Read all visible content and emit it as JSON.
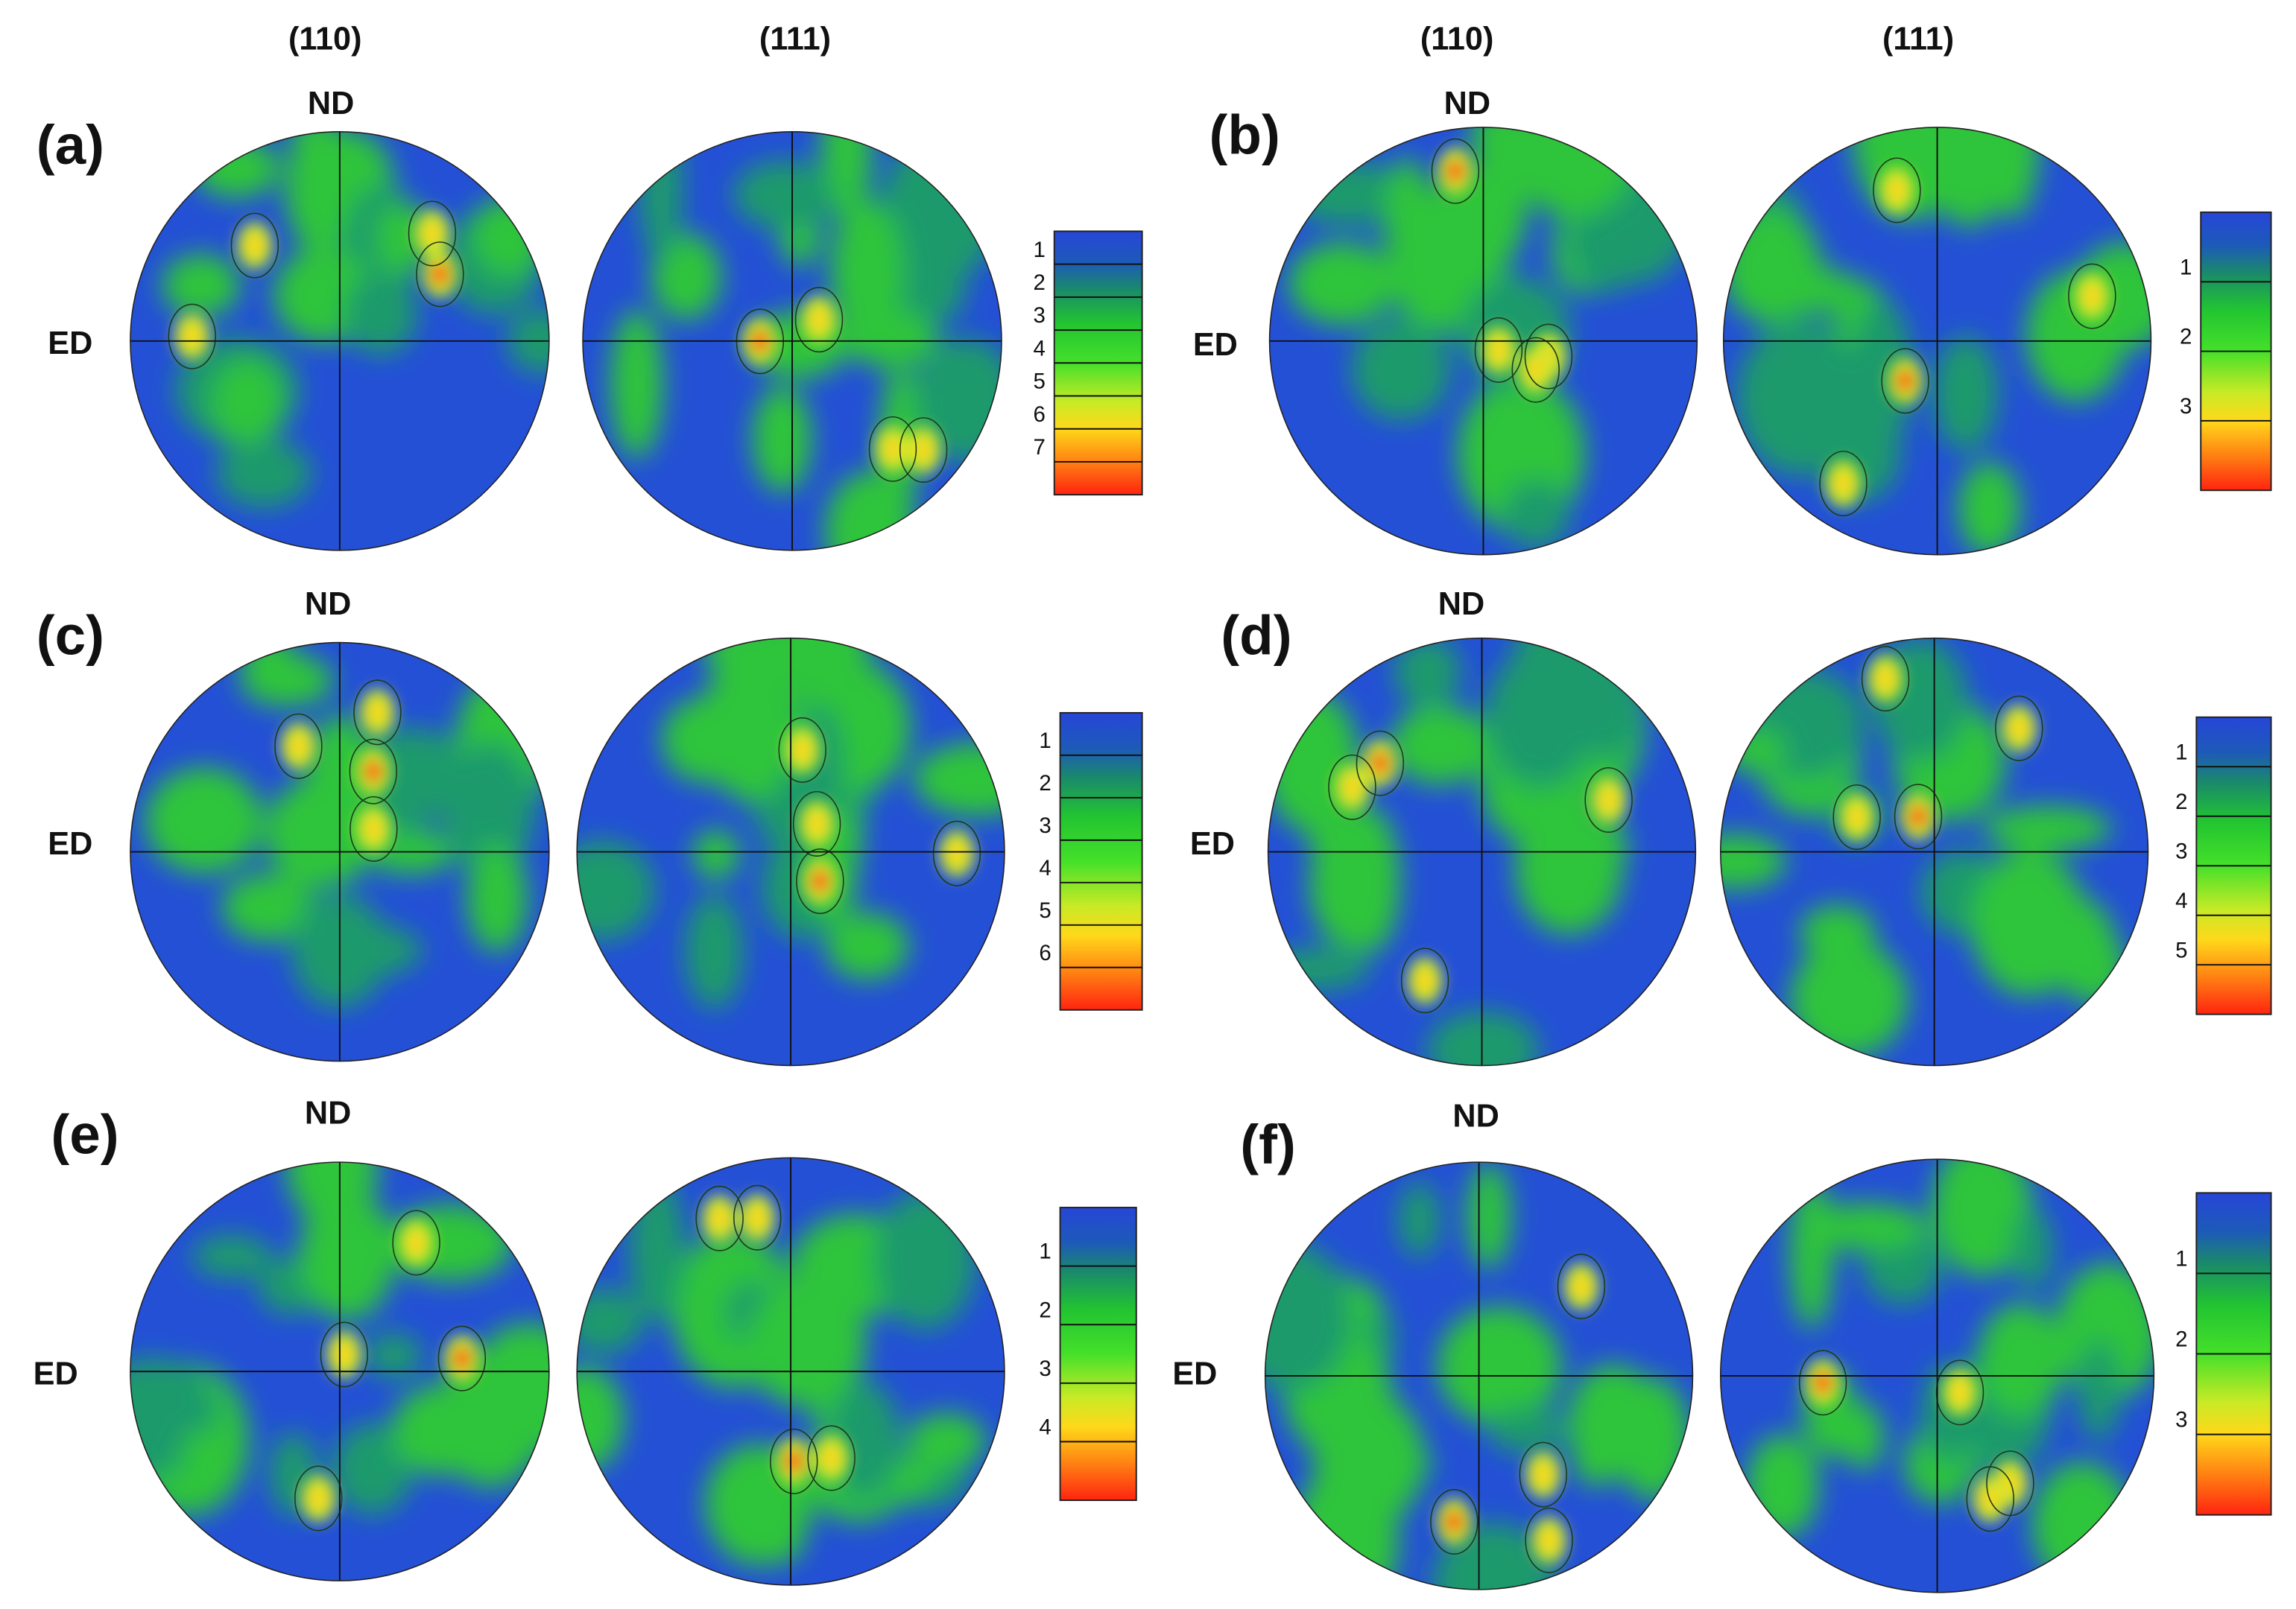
{
  "column_headers": [
    "(110)",
    "(111)",
    "(110)",
    "(111)"
  ],
  "panels": [
    {
      "label": "(a)",
      "nd": "ND",
      "ed": "ED",
      "colorbar_ticks": [
        1,
        2,
        3,
        4,
        5,
        6,
        7
      ]
    },
    {
      "label": "(b)",
      "nd": "ND",
      "ed": "ED",
      "colorbar_ticks": [
        1,
        2,
        3
      ]
    },
    {
      "label": "(c)",
      "nd": "ND",
      "ed": "ED",
      "colorbar_ticks": [
        1,
        2,
        3,
        4,
        5,
        6
      ]
    },
    {
      "label": "(d)",
      "nd": "ND",
      "ed": "ED",
      "colorbar_ticks": [
        1,
        2,
        3,
        4,
        5
      ]
    },
    {
      "label": "(e)",
      "nd": "ND",
      "ed": "ED",
      "colorbar_ticks": [
        1,
        2,
        3,
        4
      ]
    },
    {
      "label": "(f)",
      "nd": "ND",
      "ed": "ED",
      "colorbar_ticks": [
        1,
        2,
        3
      ]
    }
  ]
}
